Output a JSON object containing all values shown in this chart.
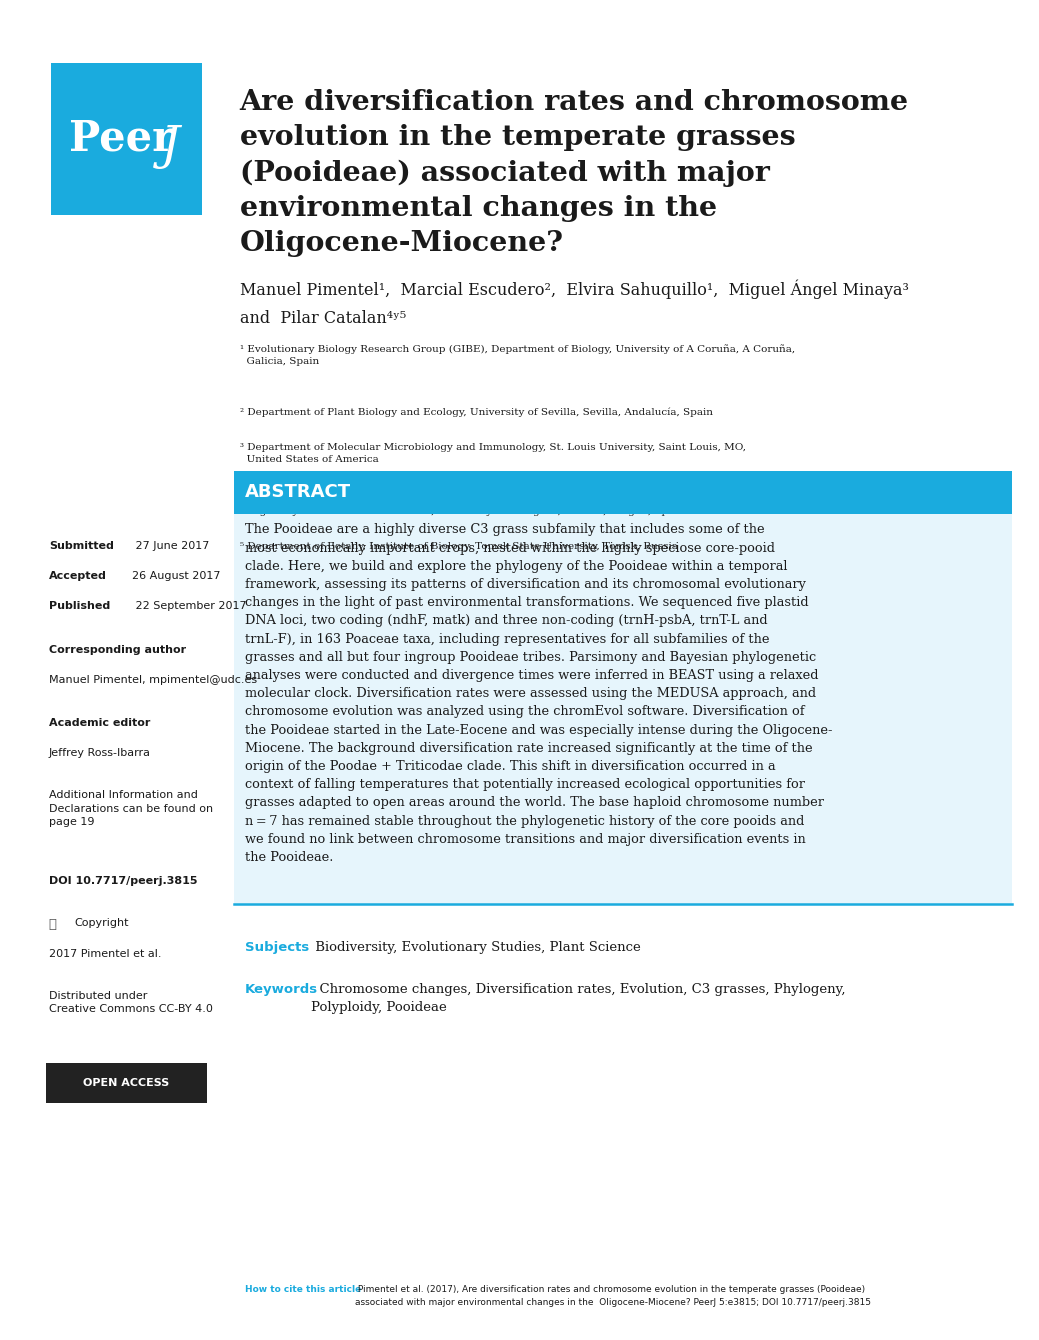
{
  "bg_color": "#ffffff",
  "peer_j_blue": "#1aabde",
  "title": "Are diversification rates and chromosome\nevolution in the temperate grasses\n(Pooideae) associated with major\nenvironmental changes in the\nOligocene-Miocene?",
  "authors_line1": "Manuel Pimentel¹,  Marcial Escudero²,  Elvira Sahuquillo¹,  Miguel Ángel Minaya³",
  "authors_line2": "and  Pilar Catalan⁴ʸ⁵",
  "affil1": "¹ Evolutionary Biology Research Group (GIBE), Department of Biology, University of A Coruña, A Coruña,\n  Galicia, Spain",
  "affil2": "² Department of Plant Biology and Ecology, University of Sevilla, Sevilla, Andalucía, Spain",
  "affil3": "³ Department of Molecular Microbiology and Immunology, St. Louis University, Saint Louis, MO,\n  United States of America",
  "affil4": "⁴ High Polytechnic School of Huesca, University of Zaragoza, Huesca, Aragón, Spain",
  "affil5": "⁵ Department of Botany, Institute of Biology, Tomsk State University, Tomsk, Russia",
  "abstract_header": "ABSTRACT",
  "abstract_text": "The Pooideae are a highly diverse C3 grass subfamily that includes some of the\nmost economically important crops, nested within the highly speciose core-pooid\nclade. Here, we build and explore the phylogeny of the Pooideae within a temporal\nframework, assessing its patterns of diversification and its chromosomal evolutionary\nchanges in the light of past environmental transformations. We sequenced five plastid\nDNA loci, two coding (ndhF, matk) and three non-coding (trnH-psbA, trnT-L and\ntrnL-F), in 163 Poaceae taxa, including representatives for all subfamilies of the\ngrasses and all but four ingroup Pooideae tribes. Parsimony and Bayesian phylogenetic\nanalyses were conducted and divergence times were inferred in BEAST using a relaxed\nmolecular clock. Diversification rates were assessed using the MEDUSA approach, and\nchromosome evolution was analyzed using the chromEvol software. Diversification of\nthe Pooideae started in the Late-Eocene and was especially intense during the Oligocene-\nMiocene. The background diversification rate increased significantly at the time of the\norigin of the Poodae + Triticodae clade. This shift in diversification occurred in a\ncontext of falling temperatures that potentially increased ecological opportunities for\ngrasses adapted to open areas around the world. The base haploid chromosome number\nn = 7 has remained stable throughout the phylogenetic history of the core pooids and\nwe found no link between chromosome transitions and major diversification events in\nthe Pooideae.",
  "subjects_label": "Subjects",
  "subjects_text": " Biodiversity, Evolutionary Studies, Plant Science",
  "keywords_label": "Keywords",
  "keywords_text": "  Chromosome changes, Diversification rates, Evolution, C3 grasses, Phylogeny,\nPolyploidy, Pooideae",
  "sidebar_submitted_bold": "Submitted",
  "sidebar_submitted_rest": " 27 June 2017",
  "sidebar_accepted_bold": "Accepted",
  "sidebar_accepted_rest": "  26 August 2017",
  "sidebar_published_bold": "Published",
  "sidebar_published_rest": " 22 September 2017",
  "sidebar_corresponding": "Corresponding author",
  "sidebar_corresponding2": "Manuel Pimentel, mpimentel@udc.es",
  "sidebar_academic": "Academic editor",
  "sidebar_academic2": "Jeffrey Ross-Ibarra",
  "sidebar_additional": "Additional Information and\nDeclarations can be found on\npage 19",
  "sidebar_doi": "DOI 10.7717/peerj.3815",
  "sidebar_copyright": "Copyright",
  "sidebar_copyright2": "2017 Pimentel et al.",
  "sidebar_distributed": "Distributed under\nCreative Commons CC-BY 4.0",
  "open_access": "OPEN ACCESS",
  "cite_label": "How to cite this article",
  "cite_text": " Pimentel et al. (2017), Are diversification rates and chromosome evolution in the temperate grasses (Pooideae)\nassociated with major environmental changes in the  Oligocene-Miocene? PeerJ 5:e3815; DOI 10.7717/peerj.3815"
}
